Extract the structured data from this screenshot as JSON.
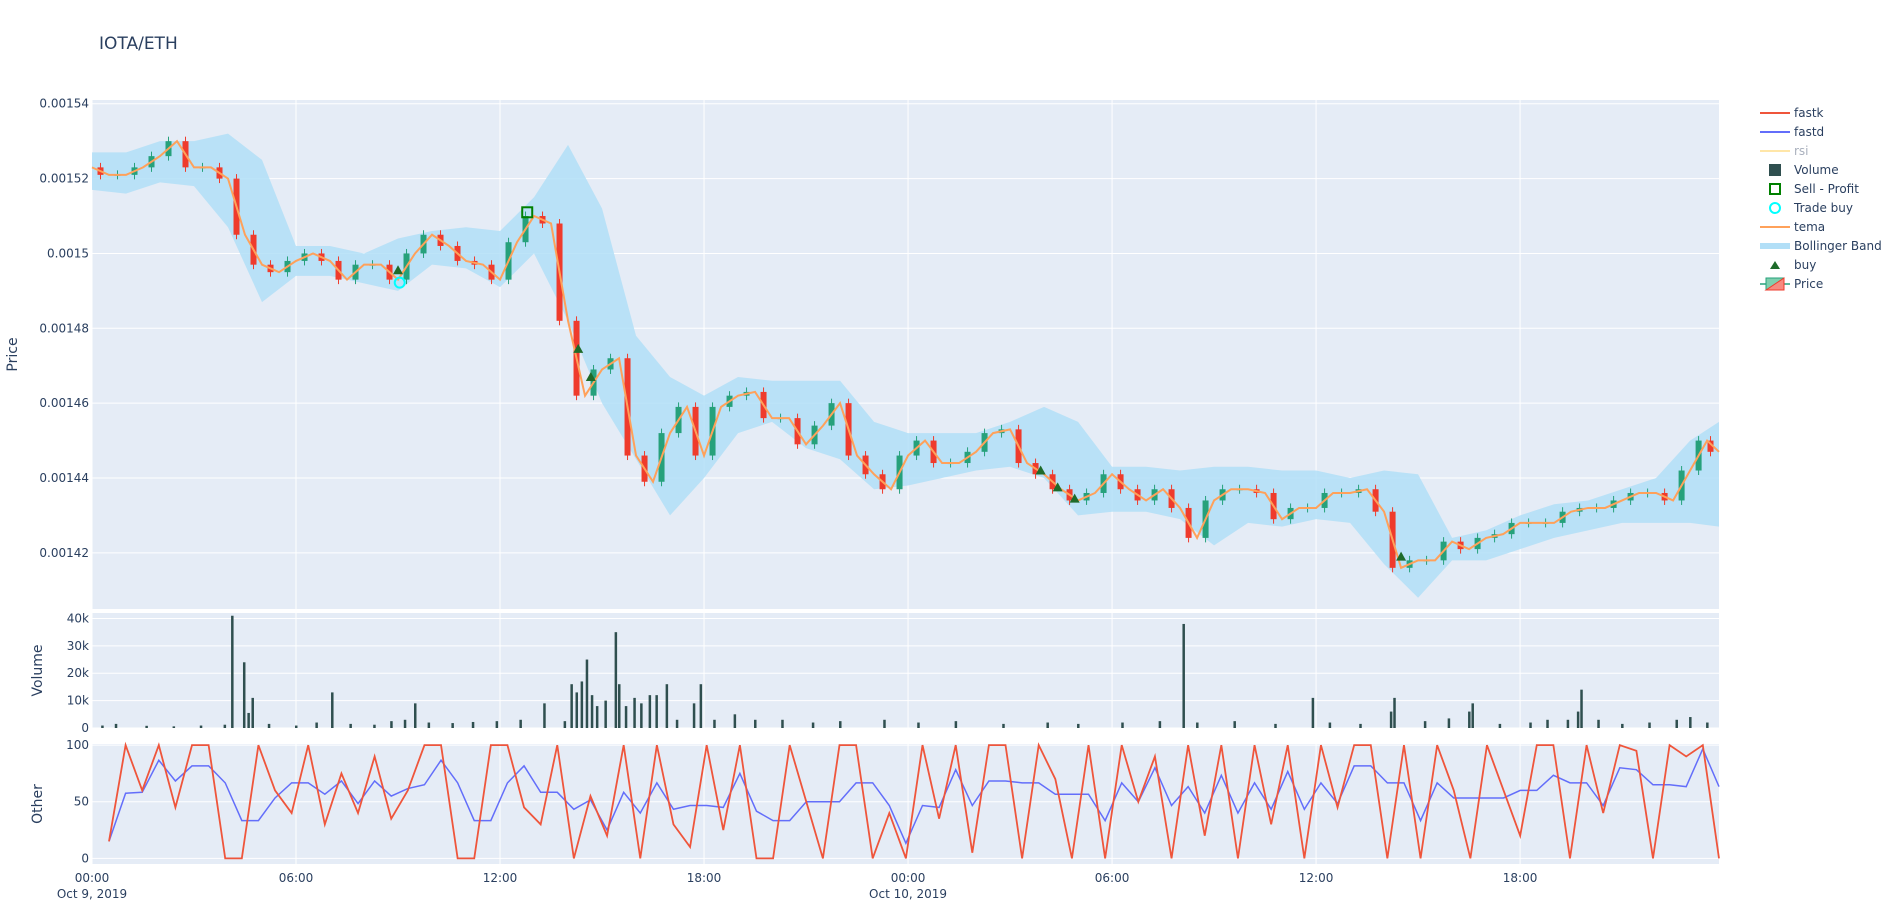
{
  "title": "IOTA/ETH",
  "colors": {
    "plot_bg": "#e5ecf6",
    "grid": "#ffffff",
    "up": "#26a17b",
    "down": "#ef3b2c",
    "fastk": "#ef553b",
    "fastd": "#636efa",
    "rsi": "#ffe6a8",
    "volume": "#2f4f4f",
    "sell": "#008000",
    "trade_buy": "#00ffff",
    "tema": "#ffa15a",
    "bollinger": "#b2dff7",
    "buy": "#1e6b2a"
  },
  "legend": [
    {
      "label": "fastk",
      "icon": "line",
      "color_key": "fastk"
    },
    {
      "label": "fastd",
      "icon": "line",
      "color_key": "fastd"
    },
    {
      "label": "rsi",
      "icon": "line",
      "color_key": "rsi",
      "hidden": true
    },
    {
      "label": "Volume",
      "icon": "square-filled",
      "color_key": "volume"
    },
    {
      "label": "Sell - Profit",
      "icon": "square-open",
      "color_key": "sell"
    },
    {
      "label": "Trade buy",
      "icon": "circle-open",
      "color_key": "trade_buy"
    },
    {
      "label": "tema",
      "icon": "line",
      "color_key": "tema"
    },
    {
      "label": "Bollinger Band",
      "icon": "band",
      "color_key": "bollinger"
    },
    {
      "label": "buy",
      "icon": "triangle-up",
      "color_key": "buy"
    },
    {
      "label": "Price",
      "icon": "candle",
      "color_key": "up"
    }
  ],
  "chart_data": [
    {
      "type": "candlestick",
      "panel": "price",
      "ylabel": "Price",
      "ylim": [
        0.001405,
        0.001541
      ],
      "yticks": [
        "0.00142",
        "0.00144",
        "0.00146",
        "0.00148",
        "0.0015",
        "0.00152",
        "0.00154"
      ],
      "ytick_values": [
        0.00142,
        0.00144,
        0.00146,
        0.00148,
        0.0015,
        0.00152,
        0.00154
      ],
      "x_hours_step": 0.5,
      "tema": [
        1.523,
        1.521,
        1.521,
        1.523,
        1.526,
        1.53,
        1.523,
        1.523,
        1.52,
        1.505,
        1.497,
        1.495,
        1.498,
        1.5,
        1.498,
        1.493,
        1.497,
        1.497,
        1.493,
        1.5,
        1.505,
        1.502,
        1.498,
        1.497,
        1.493,
        1.503,
        1.51,
        1.508,
        1.482,
        1.462,
        1.469,
        1.472,
        1.446,
        1.439,
        1.452,
        1.459,
        1.446,
        1.459,
        1.462,
        1.463,
        1.456,
        1.456,
        1.449,
        1.454,
        1.46,
        1.446,
        1.441,
        1.437,
        1.446,
        1.45,
        1.444,
        1.444,
        1.447,
        1.452,
        1.453,
        1.444,
        1.441,
        1.437,
        1.434,
        1.436,
        1.441,
        1.437,
        1.434,
        1.437,
        1.432,
        1.424,
        1.434,
        1.437,
        1.437,
        1.436,
        1.429,
        1.432,
        1.432,
        1.436,
        1.436,
        1.437,
        1.431,
        1.416,
        1.418,
        1.418,
        1.423,
        1.421,
        1.424,
        1.425,
        1.428,
        1.428,
        1.428,
        1.431,
        1.432,
        1.432,
        1.434,
        1.436,
        1.436,
        1.434,
        1.442,
        1.45,
        1.447
      ],
      "bollinger_hours_step": 1,
      "bollinger_upper": [
        1.527,
        1.527,
        1.53,
        1.53,
        1.532,
        1.525,
        1.502,
        1.502,
        1.5,
        1.504,
        1.506,
        1.507,
        1.506,
        1.515,
        1.529,
        1.512,
        1.478,
        1.467,
        1.462,
        1.467,
        1.466,
        1.466,
        1.466,
        1.455,
        1.452,
        1.452,
        1.452,
        1.455,
        1.459,
        1.455,
        1.443,
        1.443,
        1.442,
        1.443,
        1.443,
        1.442,
        1.442,
        1.44,
        1.442,
        1.441,
        1.424,
        1.426,
        1.43,
        1.433,
        1.434,
        1.437,
        1.44,
        1.45,
        1.455
      ],
      "bollinger_lower": [
        1.517,
        1.516,
        1.519,
        1.518,
        1.507,
        1.487,
        1.494,
        1.494,
        1.492,
        1.49,
        1.497,
        1.496,
        1.491,
        1.5,
        1.482,
        1.46,
        1.445,
        1.43,
        1.44,
        1.452,
        1.455,
        1.448,
        1.445,
        1.437,
        1.438,
        1.44,
        1.442,
        1.443,
        1.44,
        1.43,
        1.431,
        1.431,
        1.429,
        1.422,
        1.428,
        1.427,
        1.429,
        1.428,
        1.417,
        1.408,
        1.418,
        1.418,
        1.421,
        1.424,
        1.426,
        1.428,
        1.428,
        1.428,
        1.427
      ],
      "price_unit_scale": 0.001,
      "buy": [
        [
          9.0,
          1.4955
        ],
        [
          14.3,
          1.4745
        ],
        [
          14.67,
          1.467
        ],
        [
          27.9,
          1.442
        ],
        [
          28.4,
          1.4375
        ],
        [
          28.9,
          1.4345
        ],
        [
          38.5,
          1.419
        ]
      ],
      "trade_buy": [
        [
          9.05,
          1.4922
        ]
      ],
      "sell_profit": [
        [
          12.8,
          1.511
        ]
      ]
    },
    {
      "type": "bar",
      "panel": "volume",
      "ylabel": "Volume",
      "ylim": [
        0,
        42000
      ],
      "yticks": [
        "0",
        "10k",
        "20k",
        "30k",
        "40k"
      ],
      "ytick_values": [
        0,
        10000,
        20000,
        30000,
        40000
      ],
      "bars": [
        [
          0.3,
          900
        ],
        [
          0.7,
          1500
        ],
        [
          1.6,
          800
        ],
        [
          2.4,
          600
        ],
        [
          3.2,
          900
        ],
        [
          3.9,
          1200
        ],
        [
          4.12,
          41000
        ],
        [
          4.47,
          24000
        ],
        [
          4.72,
          11000
        ],
        [
          4.6,
          5500
        ],
        [
          5.2,
          1500
        ],
        [
          6.0,
          900
        ],
        [
          6.6,
          2000
        ],
        [
          7.06,
          13000
        ],
        [
          7.6,
          1500
        ],
        [
          8.3,
          1200
        ],
        [
          8.8,
          2500
        ],
        [
          9.2,
          3000
        ],
        [
          9.5,
          9000
        ],
        [
          9.9,
          2000
        ],
        [
          10.6,
          1800
        ],
        [
          11.2,
          2200
        ],
        [
          11.9,
          2500
        ],
        [
          12.6,
          3000
        ],
        [
          13.3,
          9000
        ],
        [
          13.9,
          2500
        ],
        [
          14.1,
          16000
        ],
        [
          14.25,
          13000
        ],
        [
          14.4,
          17000
        ],
        [
          14.55,
          25000
        ],
        [
          14.7,
          12000
        ],
        [
          14.85,
          8000
        ],
        [
          15.1,
          10000
        ],
        [
          15.4,
          35000
        ],
        [
          15.5,
          16000
        ],
        [
          15.7,
          8000
        ],
        [
          15.95,
          11000
        ],
        [
          16.15,
          9000
        ],
        [
          16.4,
          12000
        ],
        [
          16.6,
          12000
        ],
        [
          16.9,
          16000
        ],
        [
          17.2,
          3000
        ],
        [
          17.7,
          9000
        ],
        [
          17.9,
          16000
        ],
        [
          18.3,
          3000
        ],
        [
          18.9,
          5000
        ],
        [
          19.5,
          3000
        ],
        [
          20.3,
          3000
        ],
        [
          21.2,
          2000
        ],
        [
          22.0,
          2500
        ],
        [
          23.3,
          3000
        ],
        [
          24.3,
          2000
        ],
        [
          25.4,
          2500
        ],
        [
          26.8,
          1500
        ],
        [
          28.1,
          2000
        ],
        [
          29.0,
          1500
        ],
        [
          30.3,
          2000
        ],
        [
          31.4,
          2500
        ],
        [
          32.1,
          38000
        ],
        [
          32.5,
          2000
        ],
        [
          33.6,
          2500
        ],
        [
          34.8,
          1500
        ],
        [
          35.9,
          11000
        ],
        [
          36.4,
          2000
        ],
        [
          37.3,
          1500
        ],
        [
          38.2,
          6000
        ],
        [
          38.3,
          11000
        ],
        [
          39.2,
          2500
        ],
        [
          39.9,
          3500
        ],
        [
          40.5,
          6000
        ],
        [
          40.6,
          9000
        ],
        [
          41.4,
          1500
        ],
        [
          42.3,
          2000
        ],
        [
          42.8,
          3000
        ],
        [
          43.4,
          3000
        ],
        [
          43.7,
          6000
        ],
        [
          43.8,
          14000
        ],
        [
          44.3,
          3000
        ],
        [
          45.0,
          1500
        ],
        [
          45.8,
          2000
        ],
        [
          46.6,
          3000
        ],
        [
          47.0,
          4000
        ],
        [
          47.5,
          2000
        ]
      ],
      "bar_width_hours": 0.06
    },
    {
      "type": "line",
      "panel": "other",
      "ylabel": "Other",
      "ylim": [
        -5,
        101
      ],
      "yticks": [
        "0",
        "50",
        "100"
      ],
      "ytick_values": [
        0,
        50,
        100
      ],
      "x_hours_step": 0.5,
      "fastk": [
        15,
        100,
        60,
        100,
        45,
        100,
        100,
        0,
        0,
        100,
        60,
        40,
        100,
        30,
        75,
        40,
        90,
        35,
        60,
        100,
        100,
        0,
        0,
        100,
        100,
        45,
        30,
        100,
        0,
        55,
        20,
        100,
        0,
        100,
        30,
        10,
        100,
        25,
        100,
        0,
        0,
        100,
        50,
        0,
        100,
        100,
        0,
        40,
        0,
        100,
        35,
        100,
        5,
        100,
        100,
        0,
        100,
        70,
        0,
        100,
        0,
        100,
        50,
        90,
        0,
        100,
        20,
        100,
        0,
        100,
        30,
        100,
        0,
        100,
        45,
        100,
        100,
        0,
        100,
        0,
        100,
        60,
        0,
        100,
        60,
        20,
        100,
        100,
        0,
        100,
        40,
        100,
        95,
        0,
        100,
        90,
        100,
        0
      ],
      "fastd": null,
      "fastd_window": 3
    }
  ],
  "xaxis": {
    "ticks": [
      {
        "hours": 0,
        "label": "00:00",
        "sub": "Oct 9, 2019"
      },
      {
        "hours": 6,
        "label": "06:00",
        "sub": ""
      },
      {
        "hours": 12,
        "label": "12:00",
        "sub": ""
      },
      {
        "hours": 18,
        "label": "18:00",
        "sub": ""
      },
      {
        "hours": 24,
        "label": "00:00",
        "sub": "Oct 10, 2019"
      },
      {
        "hours": 30,
        "label": "06:00",
        "sub": ""
      },
      {
        "hours": 36,
        "label": "12:00",
        "sub": ""
      },
      {
        "hours": 42,
        "label": "18:00",
        "sub": ""
      }
    ],
    "range_hours": [
      0,
      47.85
    ]
  }
}
